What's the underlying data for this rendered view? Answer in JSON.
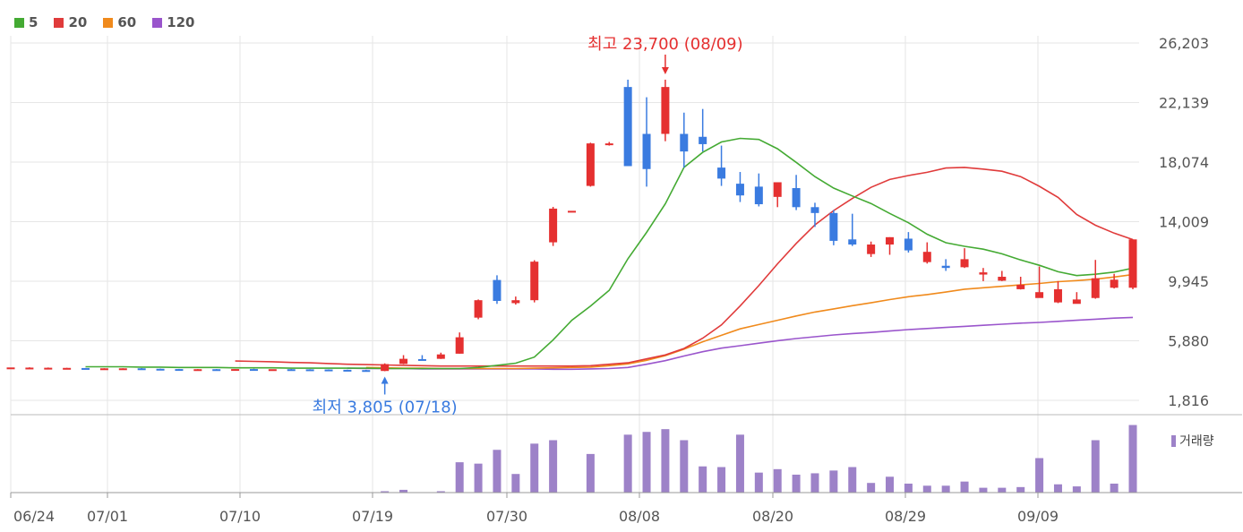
{
  "legend": [
    {
      "label": "5",
      "color": "#44aa33"
    },
    {
      "label": "20",
      "color": "#e03b3b"
    },
    {
      "label": "60",
      "color": "#f08a1c"
    },
    {
      "label": "120",
      "color": "#9a55cc"
    }
  ],
  "volume_legend": {
    "label": "거래량",
    "color": "#9d82c8"
  },
  "colors": {
    "up": "#e53030",
    "down": "#3a7be0",
    "volume": "#9d82c8",
    "grid": "#e6e6e6"
  },
  "chart_data": {
    "type": "candlestick",
    "ylim": [
      1816,
      26203
    ],
    "y_ticks": [
      "26,203",
      "22,139",
      "18,074",
      "14,009",
      "9,945",
      "5,880",
      "1,816"
    ],
    "x_tick_labels": [
      "06/24",
      "07/01",
      "07/10",
      "07/19",
      "07/30",
      "08/08",
      "08/20",
      "08/29",
      "09/09"
    ],
    "annotations": {
      "high": {
        "text": "최고 23,700 (08/09)",
        "value": 23700
      },
      "low": {
        "text": "최저 3,805 (07/18)",
        "value": 3805
      }
    },
    "candles": [
      [
        4060,
        4060,
        4060,
        4060
      ],
      [
        4050,
        4070,
        4050,
        4040
      ],
      [
        4040,
        4060,
        4040,
        4030
      ],
      [
        4030,
        4040,
        4030,
        4020
      ],
      [
        4020,
        4020,
        3990,
        3980
      ],
      [
        4000,
        4010,
        4000,
        3990
      ],
      [
        4000,
        4010,
        4000,
        3990
      ],
      [
        4000,
        4020,
        3980,
        3960
      ],
      [
        3970,
        3980,
        3950,
        3930
      ],
      [
        3950,
        3960,
        3940,
        3930
      ],
      [
        3940,
        3950,
        3940,
        3930
      ],
      [
        3940,
        3950,
        3930,
        3920
      ],
      [
        3930,
        3940,
        3950,
        3920
      ],
      [
        3950,
        3970,
        3940,
        3930
      ],
      [
        3940,
        3940,
        3940,
        3940
      ],
      [
        3940,
        3950,
        3930,
        3920
      ],
      [
        3930,
        3940,
        3920,
        3910
      ],
      [
        3920,
        3930,
        3900,
        3890
      ],
      [
        3900,
        3910,
        3870,
        3850
      ],
      [
        3880,
        3900,
        3860,
        3840
      ],
      [
        3820,
        4340,
        4290,
        3805
      ],
      [
        4300,
        4900,
        4650,
        4280
      ],
      [
        4630,
        4900,
        4610,
        4560
      ],
      [
        4650,
        5070,
        4950,
        4640
      ],
      [
        5000,
        6450,
        6120,
        5000
      ],
      [
        7460,
        8700,
        8650,
        7350
      ],
      [
        10030,
        10350,
        8600,
        8400
      ],
      [
        8450,
        8900,
        8650,
        8350
      ],
      [
        8650,
        11380,
        11280,
        8500
      ],
      [
        12600,
        15020,
        14900,
        12350
      ],
      [
        14750,
        14750,
        14750,
        14750
      ],
      [
        16450,
        19400,
        19350,
        16400
      ],
      [
        19350,
        19450,
        19350,
        19200
      ],
      [
        23200,
        23700,
        17800,
        17900
      ],
      [
        20000,
        22500,
        17600,
        16400
      ],
      [
        20000,
        23700,
        23200,
        19500
      ],
      [
        20000,
        21450,
        18800,
        17700
      ],
      [
        19800,
        21700,
        19300,
        18800
      ],
      [
        17700,
        19200,
        16950,
        16450
      ],
      [
        16600,
        17400,
        15800,
        15350
      ],
      [
        16400,
        17300,
        15200,
        15050
      ],
      [
        15700,
        16600,
        16700,
        15000
      ],
      [
        16300,
        17200,
        15000,
        14800
      ],
      [
        15000,
        15300,
        14600,
        13650
      ],
      [
        14600,
        14800,
        12700,
        12400
      ],
      [
        12800,
        14550,
        12450,
        12350
      ],
      [
        11800,
        12650,
        12450,
        11600
      ],
      [
        12450,
        12950,
        12950,
        11750
      ],
      [
        12850,
        13300,
        12050,
        11900
      ],
      [
        11250,
        12600,
        11950,
        11150
      ],
      [
        11000,
        11450,
        10850,
        10650
      ],
      [
        10900,
        12200,
        11450,
        10850
      ],
      [
        10400,
        10850,
        10550,
        9950
      ],
      [
        9980,
        10650,
        10250,
        9950
      ],
      [
        9400,
        10250,
        9700,
        9380
      ],
      [
        8800,
        10950,
        9200,
        8900
      ],
      [
        8500,
        9950,
        9400,
        8450
      ],
      [
        8400,
        9200,
        8700,
        8550
      ],
      [
        8800,
        11400,
        10150,
        8750
      ],
      [
        9500,
        10450,
        10050,
        9450
      ],
      [
        9500,
        12800,
        12800,
        9400
      ]
    ],
    "ma5_norm": [
      0.906,
      0.906,
      0.906,
      0.907,
      0.907,
      0.908,
      0.908,
      0.908,
      0.909,
      0.909,
      0.909,
      0.91,
      0.91,
      0.91,
      0.91,
      0.91,
      0.911,
      0.911,
      0.911,
      0.911,
      0.911,
      0.908,
      0.902,
      0.896,
      0.879,
      0.831,
      0.776,
      0.736,
      0.692,
      0.604,
      0.53,
      0.45,
      0.348,
      0.306,
      0.277,
      0.267,
      0.27,
      0.296,
      0.334,
      0.374,
      0.406,
      0.428,
      0.449,
      0.477,
      0.503,
      0.535,
      0.559,
      0.569,
      0.577,
      0.59,
      0.607,
      0.622,
      0.64,
      0.651,
      0.647,
      0.641,
      0.63
    ],
    "ma20_norm": [
      0.89,
      0.891,
      0.892,
      0.894,
      0.895,
      0.897,
      0.899,
      0.9,
      0.901,
      0.902,
      0.903,
      0.904,
      0.904,
      0.904,
      0.904,
      0.904,
      0.904,
      0.904,
      0.904,
      0.903,
      0.899,
      0.895,
      0.884,
      0.873,
      0.855,
      0.826,
      0.789,
      0.736,
      0.679,
      0.618,
      0.561,
      0.509,
      0.469,
      0.435,
      0.404,
      0.382,
      0.371,
      0.362,
      0.35,
      0.348,
      0.353,
      0.359,
      0.374,
      0.401,
      0.432,
      0.48,
      0.51,
      0.532,
      0.55
    ],
    "ma60_norm": [
      0.908,
      0.909,
      0.91,
      0.91,
      0.911,
      0.911,
      0.911,
      0.911,
      0.911,
      0.91,
      0.909,
      0.908,
      0.907,
      0.903,
      0.898,
      0.888,
      0.875,
      0.857,
      0.836,
      0.818,
      0.8,
      0.788,
      0.776,
      0.764,
      0.753,
      0.744,
      0.735,
      0.727,
      0.718,
      0.71,
      0.704,
      0.697,
      0.689,
      0.685,
      0.681,
      0.677,
      0.673,
      0.668,
      0.665,
      0.661,
      0.655,
      0.648
    ],
    "ma120_norm": [
      0.91,
      0.911,
      0.911,
      0.911,
      0.912,
      0.912,
      0.912,
      0.912,
      0.912,
      0.912,
      0.912,
      0.913,
      0.913,
      0.912,
      0.911,
      0.908,
      0.899,
      0.889,
      0.876,
      0.864,
      0.854,
      0.847,
      0.84,
      0.833,
      0.827,
      0.822,
      0.817,
      0.813,
      0.81,
      0.806,
      0.802,
      0.799,
      0.796,
      0.793,
      0.79,
      0.787,
      0.784,
      0.782,
      0.779,
      0.776,
      0.773,
      0.77,
      0.768
    ],
    "volume_norm": [
      0,
      0,
      0,
      0,
      0,
      0,
      0,
      0,
      0,
      0,
      0,
      0,
      0,
      0,
      0,
      0,
      0,
      0,
      0,
      0,
      0.02,
      0.04,
      0,
      0.02,
      0.44,
      0.42,
      0.62,
      0.27,
      0.71,
      0.76,
      0,
      0.56,
      0,
      0.84,
      0.88,
      0.92,
      0.76,
      0.38,
      0.37,
      0.84,
      0.29,
      0.34,
      0.26,
      0.28,
      0.32,
      0.37,
      0.14,
      0.23,
      0.13,
      0.1,
      0.1,
      0.16,
      0.07,
      0.07,
      0.08,
      0.5,
      0.12,
      0.09,
      0.76,
      0.13,
      0.98
    ]
  }
}
